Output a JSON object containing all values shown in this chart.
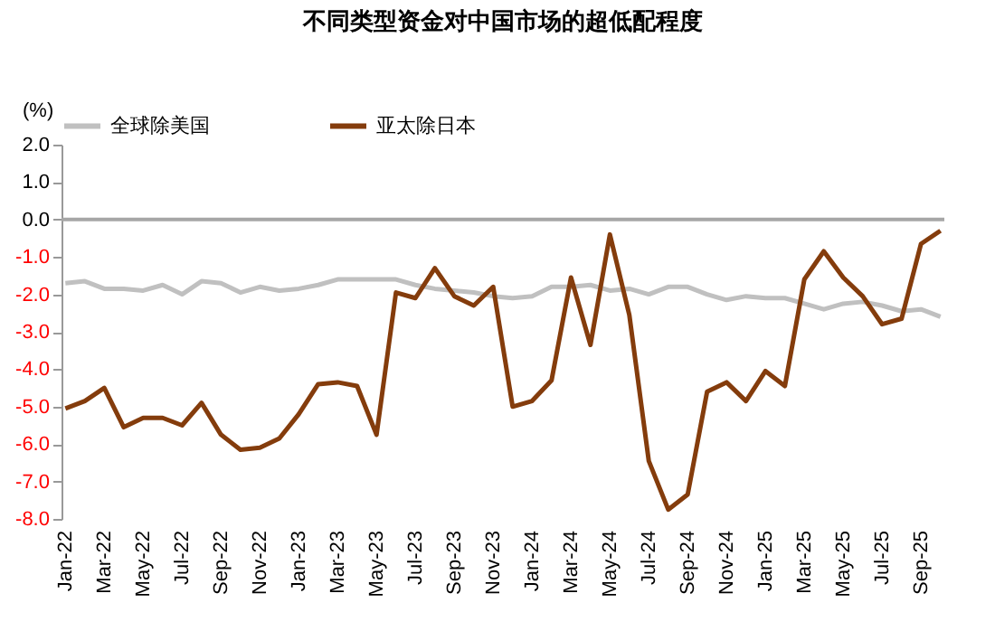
{
  "chart_data": {
    "type": "line",
    "title": "不同类型资金对中国市场的超低配程度",
    "ylabel": "(%)",
    "categories": [
      "Jan-22",
      null,
      "Mar-22",
      null,
      "May-22",
      null,
      "Jul-22",
      null,
      "Sep-22",
      null,
      "Nov-22",
      null,
      "Jan-23",
      null,
      "Mar-23",
      null,
      "May-23",
      null,
      "Jul-23",
      null,
      "Sep-23",
      null,
      "Nov-23",
      null,
      "Jan-24",
      null,
      "Mar-24",
      null,
      "May-24",
      null,
      "Jul-24",
      null,
      "Sep-24",
      null,
      "Nov-24",
      null,
      "Jan-25",
      null,
      "Mar-25",
      null,
      "May-25",
      null,
      "Jul-25",
      null,
      "Sep-25",
      null
    ],
    "series": [
      {
        "name": "全球除美国",
        "color": "#c0c0c0",
        "values": [
          -1.7,
          -1.65,
          -1.85,
          -1.85,
          -1.9,
          -1.75,
          -2.0,
          -1.65,
          -1.7,
          -1.95,
          -1.8,
          -1.9,
          -1.85,
          -1.75,
          -1.6,
          -1.6,
          -1.6,
          -1.6,
          -1.75,
          -1.85,
          -1.9,
          -1.95,
          -2.05,
          -2.1,
          -2.05,
          -1.8,
          -1.8,
          -1.75,
          -1.9,
          -1.85,
          -2.0,
          -1.8,
          -1.8,
          -2.0,
          -2.15,
          -2.05,
          -2.1,
          -2.1,
          -2.25,
          -2.4,
          -2.25,
          -2.2,
          -2.3,
          -2.45,
          -2.4,
          -2.6
        ]
      },
      {
        "name": "亚太除日本",
        "color": "#843c0c",
        "values": [
          -5.05,
          -4.85,
          -4.5,
          -5.55,
          -5.3,
          -5.3,
          -5.5,
          -4.9,
          -5.75,
          -6.15,
          -6.1,
          -5.85,
          -5.2,
          -4.4,
          -4.35,
          -4.45,
          -5.75,
          -1.95,
          -2.1,
          -1.3,
          -2.05,
          -2.3,
          -1.8,
          -5.0,
          -4.85,
          -4.3,
          -1.55,
          -3.35,
          -0.4,
          -2.55,
          -6.45,
          -7.75,
          -7.35,
          -4.6,
          -4.35,
          -4.85,
          -4.05,
          -4.45,
          -1.6,
          -0.85,
          -1.55,
          -2.05,
          -2.8,
          -2.65,
          -0.65,
          -0.3
        ]
      }
    ],
    "ylim": [
      -8,
      2
    ],
    "yticks": [
      {
        "value": 2,
        "label": "2.0"
      },
      {
        "value": 1,
        "label": "1.0"
      },
      {
        "value": 0,
        "label": "0.0"
      },
      {
        "value": -1,
        "label": "-1.0"
      },
      {
        "value": -2,
        "label": "-2.0"
      },
      {
        "value": -3,
        "label": "-3.0"
      },
      {
        "value": -4,
        "label": "-4.0"
      },
      {
        "value": -5,
        "label": "-5.0"
      },
      {
        "value": -6,
        "label": "-6.0"
      },
      {
        "value": -7,
        "label": "-7.0"
      },
      {
        "value": -8,
        "label": "-8.0"
      }
    ],
    "ref_lines": [
      {
        "axis": "y",
        "value": 0,
        "color": "#a6a6a6"
      }
    ],
    "legend": "top",
    "grid": false,
    "marker": "none",
    "line_style": "solid"
  }
}
